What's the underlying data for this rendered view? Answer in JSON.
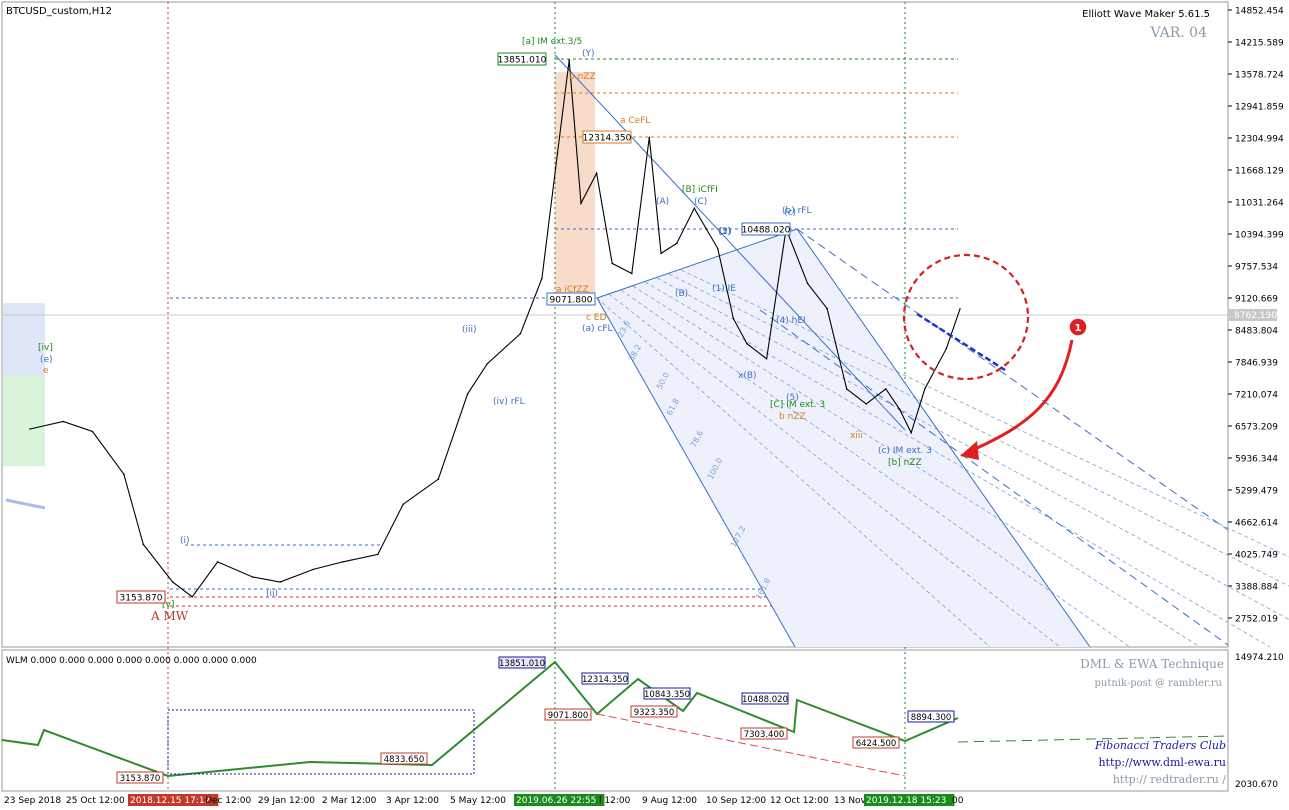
{
  "window": {
    "symbol": "BTCUSD_custom,H12",
    "indicator_name": "Elliott Wave Maker 5.61.5",
    "variant": "VAR. 04",
    "sub_indicator": "WLM 0.000 0.000 0.000 0.000 0.000 0.000 0.000 0.000"
  },
  "credits": {
    "line1": "DML & EWA Technique",
    "line2": "putnik-post @ rambler.ru",
    "line3": "Fibonacci   Traders   Club",
    "line4": "http://www.dml-ewa.ru",
    "line5": "http://  redtrader.ru  /"
  },
  "chart_data": {
    "type": "line",
    "title": "BTCUSD_custom,H12",
    "y_axis_ticks": [
      "14852.454",
      "14215.589",
      "13578.724",
      "12941.859",
      "12304.994",
      "11668.129",
      "11031.264",
      "10394.399",
      "9757.534",
      "9120.669",
      "8483.804",
      "7846.939",
      "7210.074",
      "6573.209",
      "5936.344",
      "5299.479",
      "4662.614",
      "4025.749",
      "3388.884",
      "2752.019"
    ],
    "y_range": [
      2400,
      15000
    ],
    "current_price_label": "8762.190",
    "sub_y_ticks": [
      "14974.210",
      "2030.670"
    ],
    "x_axis_labels": [
      "23 Sep 2018",
      "25 Oct 12:00",
      "2018.12.15 17:12",
      "Dec 12:00",
      "29 Jan 12:00",
      "2 Mar 12:00",
      "3 Apr 12:00",
      "5 May 12:00",
      "2019.06.26 22:55",
      "l 12:00",
      "9 Aug 12:00",
      "10 Sep 12:00",
      "12 Oct 12:00",
      "13 Nov",
      "2019.12.18 15:23",
      "00"
    ],
    "price_series": {
      "x_dates": [
        "2018-09-23",
        "2018-10-10",
        "2018-10-25",
        "2018-11-10",
        "2018-11-20",
        "2018-12-05",
        "2018-12-15",
        "2018-12-28",
        "2019-01-15",
        "2019-01-29",
        "2019-02-15",
        "2019-03-02",
        "2019-03-20",
        "2019-04-02",
        "2019-04-20",
        "2019-05-05",
        "2019-05-15",
        "2019-06-01",
        "2019-06-12",
        "2019-06-20",
        "2019-06-26",
        "2019-07-02",
        "2019-07-10",
        "2019-07-18",
        "2019-07-28",
        "2019-08-06",
        "2019-08-12",
        "2019-08-20",
        "2019-08-29",
        "2019-09-10",
        "2019-09-18",
        "2019-09-25",
        "2019-10-05",
        "2019-10-15",
        "2019-10-26",
        "2019-11-05",
        "2019-11-15",
        "2019-11-25",
        "2019-12-05",
        "2019-12-12",
        "2019-12-18",
        "2019-12-25",
        "2020-01-05",
        "2020-01-12"
      ],
      "values": [
        6500,
        6650,
        6450,
        5600,
        4200,
        3450,
        3154,
        3850,
        3550,
        3450,
        3700,
        3850,
        4000,
        5000,
        5500,
        7200,
        7800,
        8400,
        9500,
        12000,
        13851,
        11000,
        11600,
        9800,
        9600,
        12314,
        10000,
        10200,
        10900,
        10100,
        8700,
        8200,
        7900,
        10488,
        9400,
        8900,
        7300,
        7000,
        7300,
        6900,
        6424,
        7300,
        8100,
        8894
      ]
    },
    "annotations": [
      {
        "text": "[a] IM ext.3/5",
        "color": "#1b8a1b"
      },
      {
        "text": "b nZZ",
        "color": "#d97a1e"
      },
      {
        "text": "a CeFL",
        "color": "#d97a1e"
      },
      {
        "text": "[B] iCfFI",
        "color": "#1b8a1b"
      },
      {
        "text": "(b) rFL",
        "color": "#3a6fc4"
      },
      {
        "text": "a iCfZZ",
        "color": "#d97a1e"
      },
      {
        "text": "c ED",
        "color": "#d97a1e"
      },
      {
        "text": "(a) cFL",
        "color": "#3a6fc4"
      },
      {
        "text": "(iv) rFL",
        "color": "#3a6fc4"
      },
      {
        "text": "(iii)",
        "color": "#3a6fc4"
      },
      {
        "text": "[iv]",
        "color": "#1b8a1b"
      },
      {
        "text": "(e)",
        "color": "#3a6fc4"
      },
      {
        "text": "e",
        "color": "#d97a1e"
      },
      {
        "text": "(i)",
        "color": "#3a6fc4"
      },
      {
        "text": "(ii)",
        "color": "#3a6fc4"
      },
      {
        "text": "A MW",
        "color": "#c0392b"
      },
      {
        "text": "[v]",
        "color": "#1b8a1b"
      },
      {
        "text": "[C] IM ext. 3",
        "color": "#1b8a1b"
      },
      {
        "text": "b nZZ",
        "color": "#d97a1e"
      },
      {
        "text": "xiii",
        "color": "#d97a1e"
      },
      {
        "text": "(c) IM ext. 3",
        "color": "#3a6fc4"
      },
      {
        "text": "[b] nZZ",
        "color": "#1b8a1b"
      },
      {
        "text": "(4) hEI",
        "color": "#3a6fc4"
      },
      {
        "text": "(5)",
        "color": "#3a6fc4"
      },
      {
        "text": "x(B)",
        "color": "#3a6fc4"
      },
      {
        "text": "(3)",
        "color": "#3a6fc4"
      },
      {
        "text": "(A)",
        "color": "#3a6fc4"
      },
      {
        "text": "(B)",
        "color": "#3a6fc4"
      },
      {
        "text": "(1) IE",
        "color": "#3a6fc4"
      },
      {
        "text": "(2)",
        "color": "#3a6fc4"
      },
      {
        "text": "(C)",
        "color": "#3a6fc4"
      },
      {
        "text": "(c)",
        "color": "#3a6fc4"
      },
      {
        "text": "(Y)",
        "color": "#3a6fc4"
      }
    ],
    "price_boxes": [
      {
        "label": "13851.010",
        "color": "#1b8a1b"
      },
      {
        "label": "12314.350",
        "color": "#d97a1e"
      },
      {
        "label": "10488.020",
        "color": "#3a6fc4"
      },
      {
        "label": "9071.800",
        "color": "#3a6fc4"
      },
      {
        "label": "3153.870",
        "color": "#c0392b"
      }
    ],
    "fib_levels": [
      "23.6",
      "38.2",
      "50.0",
      "61.8",
      "78.6",
      "100.0",
      "127.2",
      "161.8"
    ],
    "sub_boxes": [
      {
        "label": "13851.010",
        "color": "#1a1aa0"
      },
      {
        "label": "12314.350",
        "color": "#1a1aa0"
      },
      {
        "label": "10843.350",
        "color": "#1a1aa0"
      },
      {
        "label": "10488.020",
        "color": "#1a1aa0"
      },
      {
        "label": "8894.300",
        "color": "#1a1aa0"
      },
      {
        "label": "9071.800",
        "color": "#c0392b"
      },
      {
        "label": "9323.350",
        "color": "#c0392b"
      },
      {
        "label": "7303.400",
        "color": "#c0392b"
      },
      {
        "label": "6424.500",
        "color": "#c0392b"
      },
      {
        "label": "4833.650",
        "color": "#c0392b"
      },
      {
        "label": "3153.870",
        "color": "#c0392b"
      }
    ],
    "marker": "1",
    "grid": false
  }
}
